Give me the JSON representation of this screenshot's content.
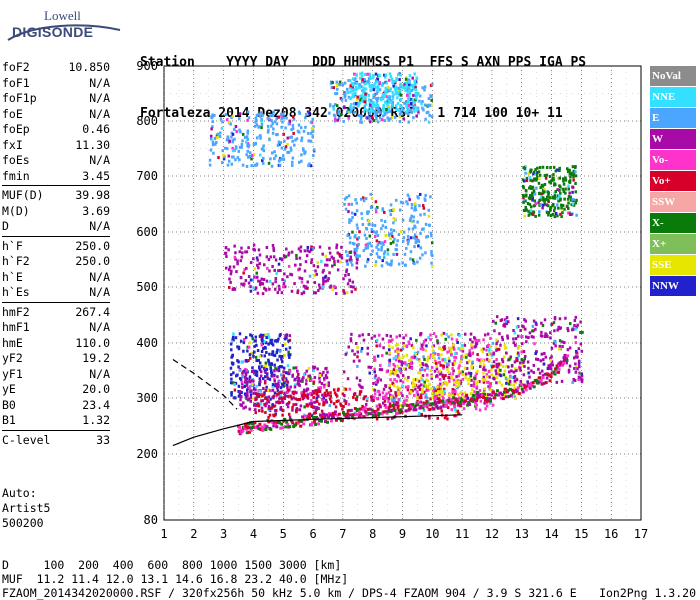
{
  "logo": {
    "line1": "Lowell",
    "line2": "DIGISONDE"
  },
  "header": {
    "row1": "Station    YYYY DAY   DDD HHMMSS P1  FFS S AXN PPS IGA PS",
    "row2": "Fortaleza 2014 Dez08 342 020000 RSF   1 714 100 10+ 11"
  },
  "params": [
    {
      "k": "foF2",
      "v": "10.850"
    },
    {
      "k": "foF1",
      "v": "N/A"
    },
    {
      "k": "foF1p",
      "v": "N/A"
    },
    {
      "k": "foE",
      "v": "N/A"
    },
    {
      "k": "foEp",
      "v": "0.46"
    },
    {
      "k": "fxI",
      "v": "11.30"
    },
    {
      "k": "foEs",
      "v": "N/A"
    },
    {
      "k": "fmin",
      "v": "3.45"
    },
    {
      "sep": true
    },
    {
      "k": "MUF(D)",
      "v": "39.98"
    },
    {
      "k": "M(D)",
      "v": "3.69"
    },
    {
      "k": "D",
      "v": "N/A"
    },
    {
      "sep": true
    },
    {
      "k": "h`F",
      "v": "250.0"
    },
    {
      "k": "h`F2",
      "v": "250.0"
    },
    {
      "k": "h`E",
      "v": "N/A"
    },
    {
      "k": "h`Es",
      "v": "N/A"
    },
    {
      "sep": true
    },
    {
      "k": "hmF2",
      "v": "267.4"
    },
    {
      "k": "hmF1",
      "v": "N/A"
    },
    {
      "k": "hmE",
      "v": "110.0"
    },
    {
      "k": "yF2",
      "v": "19.2"
    },
    {
      "k": "yF1",
      "v": "N/A"
    },
    {
      "k": "yE",
      "v": "20.0"
    },
    {
      "k": "B0",
      "v": "23.4"
    },
    {
      "k": "B1",
      "v": "1.32"
    },
    {
      "sep": true
    },
    {
      "k": "C-level",
      "v": "33"
    }
  ],
  "auto": {
    "label": "Auto:",
    "artist": "Artist5",
    "version": "500200"
  },
  "legend": [
    {
      "label": "NoVal",
      "color": "#8c8c8c"
    },
    {
      "label": "NNE",
      "color": "#33e0ff"
    },
    {
      "label": "E",
      "color": "#4aa6ff"
    },
    {
      "label": "W",
      "color": "#a80aa8"
    },
    {
      "label": "Vo-",
      "color": "#ff33cc"
    },
    {
      "label": "Vo+",
      "color": "#d6002a"
    },
    {
      "label": "SSW",
      "color": "#f7a6a6"
    },
    {
      "label": "X-",
      "color": "#0a7a0a"
    },
    {
      "label": "X+",
      "color": "#7fbf5a"
    },
    {
      "label": "SSE",
      "color": "#e6e600"
    },
    {
      "label": "NNW",
      "color": "#2222cc"
    }
  ],
  "footer": {
    "line1": "D     100  200  400  600  800 1000 1500 3000 [km]",
    "line2": "MUF  11.2 11.4 12.0 13.1 14.6 16.8 23.2 40.0 [MHz]",
    "line3": "FZAOM_2014342020000.RSF / 320fx256h 50 kHz 5.0 km / DPS-4 FZAOM 904 / 3.9 S 321.6 E"
  },
  "credit": "Ion2Png 1.3.20",
  "chart_data": {
    "type": "scatter",
    "title": "",
    "xlabel": "",
    "ylabel": "",
    "xlim": [
      1,
      17
    ],
    "ylim": [
      80,
      900
    ],
    "x_ticks": [
      1,
      2,
      3,
      4,
      5,
      6,
      7,
      8,
      9,
      10,
      11,
      12,
      13,
      14,
      15,
      16,
      17
    ],
    "y_ticks": [
      80,
      200,
      300,
      400,
      500,
      600,
      700,
      800,
      900
    ],
    "grid": true,
    "trace_F2": [
      [
        3.45,
        245
      ],
      [
        4,
        252
      ],
      [
        5,
        258
      ],
      [
        6,
        264
      ],
      [
        7,
        272
      ],
      [
        8,
        280
      ],
      [
        9,
        285
      ],
      [
        10,
        292
      ],
      [
        11,
        298
      ],
      [
        12,
        305
      ],
      [
        13,
        320
      ],
      [
        14,
        345
      ],
      [
        14.5,
        380
      ]
    ],
    "trace_model_upper": [
      [
        1.3,
        370
      ],
      [
        2,
        345
      ],
      [
        3,
        305
      ],
      [
        3.45,
        280
      ]
    ],
    "trace_model_lower": [
      [
        1.3,
        215
      ],
      [
        2,
        230
      ],
      [
        3,
        245
      ],
      [
        4,
        258
      ],
      [
        6,
        262
      ],
      [
        8,
        265
      ],
      [
        11,
        270
      ]
    ],
    "clusters": [
      {
        "x": [
          3.2,
          5.2
        ],
        "y": [
          300,
          420
        ],
        "color": "#2222cc"
      },
      {
        "x": [
          3.5,
          6.5
        ],
        "y": [
          280,
          360
        ],
        "color": "#a80aa8"
      },
      {
        "x": [
          7,
          12
        ],
        "y": [
          290,
          420
        ],
        "color": "#a80aa8"
      },
      {
        "x": [
          4,
          11
        ],
        "y": [
          265,
          320
        ],
        "color": "#d6002a"
      },
      {
        "x": [
          8,
          12
        ],
        "y": [
          280,
          420
        ],
        "color": "#ff33cc"
      },
      {
        "x": [
          8.5,
          13
        ],
        "y": [
          300,
          400
        ],
        "color": "#e6e600"
      },
      {
        "x": [
          12,
          15
        ],
        "y": [
          330,
          450
        ],
        "color": "#a80aa8"
      },
      {
        "x": [
          3,
          7.5
        ],
        "y": [
          490,
          580
        ],
        "color": "#a80aa8"
      },
      {
        "x": [
          7,
          10
        ],
        "y": [
          540,
          670
        ],
        "color": "#4aa6ff"
      },
      {
        "x": [
          13,
          14.8
        ],
        "y": [
          630,
          720
        ],
        "color": "#0a7a0a"
      },
      {
        "x": [
          2.5,
          6
        ],
        "y": [
          720,
          820
        ],
        "color": "#4aa6ff"
      },
      {
        "x": [
          6.5,
          10
        ],
        "y": [
          800,
          880
        ],
        "color": "#4aa6ff"
      },
      {
        "x": [
          7.2,
          9.5
        ],
        "y": [
          820,
          890
        ],
        "color": "#33e0ff"
      }
    ]
  }
}
